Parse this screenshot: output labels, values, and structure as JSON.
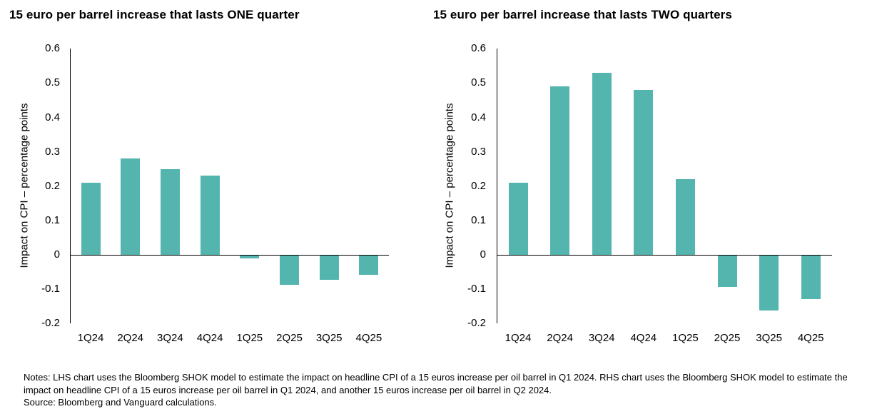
{
  "colors": {
    "bar": "#54b5ae",
    "axis": "#000000",
    "text": "#000000",
    "background": "#ffffff"
  },
  "chart_data": [
    {
      "type": "bar",
      "title": "15 euro per barrel increase that lasts ONE quarter",
      "ylabel": "Impact on CPI – percentage points",
      "xlabel": "",
      "categories": [
        "1Q24",
        "2Q24",
        "3Q24",
        "4Q24",
        "1Q25",
        "2Q25",
        "3Q25",
        "4Q25"
      ],
      "values": [
        0.21,
        0.28,
        0.25,
        0.23,
        -0.008,
        -0.085,
        -0.07,
        -0.055
      ],
      "ylim": [
        -0.2,
        0.6
      ],
      "yticks": [
        "0.6",
        "0.5",
        "0.4",
        "0.3",
        "0.2",
        "0.1",
        "0",
        "-0.1",
        "-0.2"
      ],
      "bar_color": "#54b5ae",
      "grid": false,
      "legend": false
    },
    {
      "type": "bar",
      "title": "15 euro per barrel increase that lasts TWO quarters",
      "ylabel": "Impact on CPI – percentage points",
      "xlabel": "",
      "categories": [
        "1Q24",
        "2Q24",
        "3Q24",
        "4Q24",
        "1Q25",
        "2Q25",
        "3Q25",
        "4Q25"
      ],
      "values": [
        0.21,
        0.49,
        0.53,
        0.48,
        0.22,
        -0.09,
        -0.16,
        -0.125
      ],
      "ylim": [
        -0.2,
        0.6
      ],
      "yticks": [
        "0.6",
        "0.5",
        "0.4",
        "0.3",
        "0.2",
        "0.1",
        "0",
        "-0.1",
        "-0.2"
      ],
      "bar_color": "#54b5ae",
      "grid": false,
      "legend": false
    }
  ],
  "footer": {
    "notes": "Notes: LHS chart uses the Bloomberg SHOK model to estimate the impact on headline CPI of a 15 euros increase per oil barrel in Q1 2024. RHS chart uses the Bloomberg SHOK model to estimate the impact on headline CPI of a 15 euros increase per oil barrel in Q1 2024, and another 15 euros increase per oil barrel in Q2 2024.",
    "source": "Source: Bloomberg and Vanguard calculations."
  }
}
